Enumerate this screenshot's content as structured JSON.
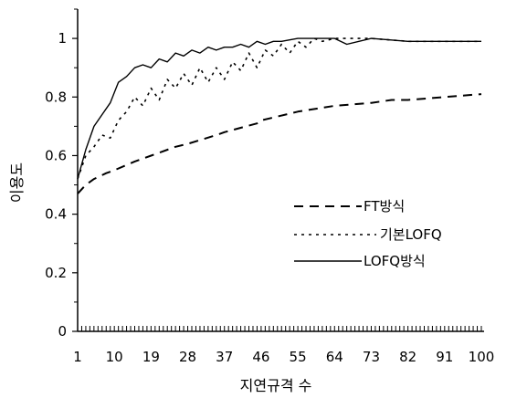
{
  "chart_data": {
    "type": "line",
    "title": "",
    "xlabel": "지연규격 수",
    "ylabel": "이용도",
    "xlim": [
      1,
      100
    ],
    "ylim": [
      0,
      1.1
    ],
    "x_ticks": [
      "1",
      "10",
      "19",
      "28",
      "37",
      "46",
      "55",
      "64",
      "73",
      "82",
      "91",
      "100"
    ],
    "y_ticks": [
      "0",
      "0.2",
      "0.4",
      "0.6",
      "0.8",
      "1"
    ],
    "grid": false,
    "legend_position": "center-right",
    "series": [
      {
        "name": "FT방식",
        "style": "dashed",
        "x": [
          1,
          3,
          5,
          8,
          10,
          15,
          19,
          25,
          28,
          35,
          37,
          45,
          46,
          55,
          64,
          73,
          78,
          82,
          91,
          100
        ],
        "y": [
          0.47,
          0.5,
          0.52,
          0.54,
          0.55,
          0.58,
          0.6,
          0.63,
          0.64,
          0.67,
          0.68,
          0.71,
          0.72,
          0.75,
          0.77,
          0.78,
          0.79,
          0.79,
          0.8,
          0.81
        ]
      },
      {
        "name": "기본LOFQ",
        "style": "dotted",
        "x": [
          1,
          3,
          5,
          7,
          9,
          11,
          13,
          15,
          17,
          19,
          21,
          23,
          25,
          27,
          29,
          31,
          33,
          35,
          37,
          39,
          41,
          43,
          45,
          47,
          49,
          51,
          53,
          55,
          57,
          59,
          61,
          64,
          73,
          82,
          91,
          100
        ],
        "y": [
          0.52,
          0.6,
          0.63,
          0.67,
          0.66,
          0.72,
          0.75,
          0.8,
          0.77,
          0.83,
          0.79,
          0.86,
          0.83,
          0.88,
          0.84,
          0.9,
          0.85,
          0.9,
          0.86,
          0.92,
          0.89,
          0.95,
          0.9,
          0.96,
          0.94,
          0.98,
          0.95,
          0.99,
          0.97,
          1.0,
          0.99,
          1.0,
          1.0,
          0.99,
          0.99,
          0.99
        ]
      },
      {
        "name": "LOFQ방식",
        "style": "solid",
        "x": [
          1,
          3,
          5,
          7,
          9,
          11,
          13,
          15,
          17,
          19,
          21,
          23,
          25,
          27,
          29,
          31,
          33,
          35,
          37,
          39,
          41,
          43,
          45,
          47,
          49,
          51,
          55,
          59,
          64,
          67,
          73,
          82,
          91,
          100
        ],
        "y": [
          0.52,
          0.62,
          0.7,
          0.74,
          0.78,
          0.85,
          0.87,
          0.9,
          0.91,
          0.9,
          0.93,
          0.92,
          0.95,
          0.94,
          0.96,
          0.95,
          0.97,
          0.96,
          0.97,
          0.97,
          0.98,
          0.97,
          0.99,
          0.98,
          0.99,
          0.99,
          1.0,
          1.0,
          1.0,
          0.98,
          1.0,
          0.99,
          0.99,
          0.99
        ]
      }
    ]
  }
}
